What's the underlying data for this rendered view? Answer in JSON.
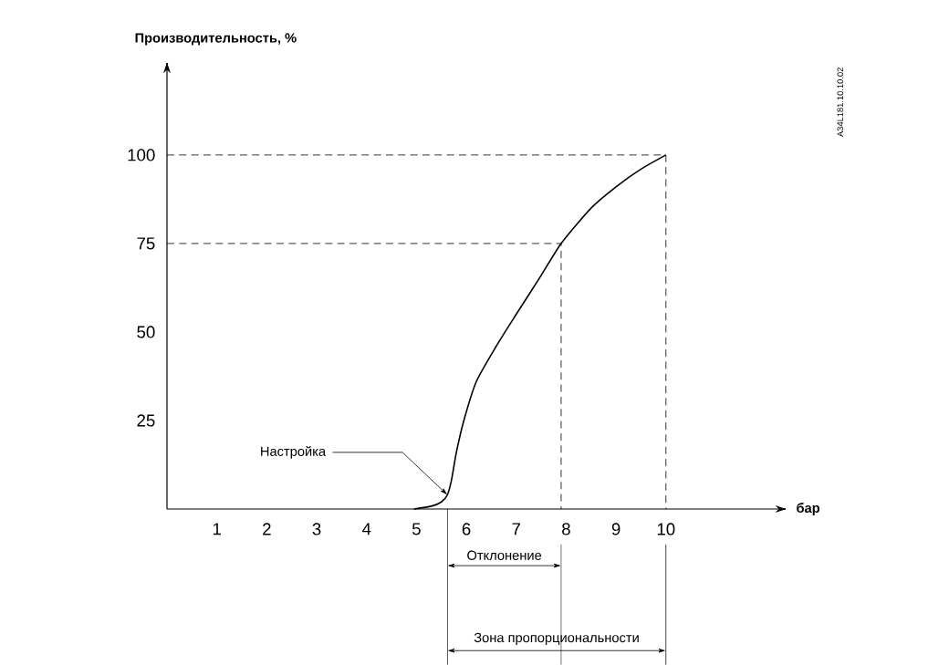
{
  "chart_data": {
    "type": "line",
    "xlabel": "бар",
    "ylabel": "Производительность, %",
    "xlim": [
      0,
      12.4
    ],
    "ylim": [
      0,
      126
    ],
    "xticks": [
      1,
      2,
      3,
      4,
      5,
      6,
      7,
      8,
      9,
      10
    ],
    "yticks": [
      25,
      50,
      75,
      100
    ],
    "series": [
      {
        "color": "#000000",
        "line_style": "solid",
        "x": [
          4.95,
          5.3,
          5.5,
          5.62,
          5.7,
          5.8,
          5.95,
          6.2,
          6.6,
          7.0,
          7.5,
          7.9,
          8.5,
          9.0,
          9.5,
          10
        ],
        "values": [
          0,
          0.8,
          2,
          4,
          8,
          16,
          25,
          36,
          46,
          55,
          66,
          75,
          85,
          91,
          96,
          100
        ]
      },
      {
        "color": "#000000",
        "line_style": "dashed",
        "x": [
          0,
          7.9,
          7.9
        ],
        "values": [
          75,
          75,
          0
        ]
      },
      {
        "color": "#000000",
        "line_style": "dashed",
        "x": [
          0,
          10,
          10
        ],
        "values": [
          100,
          100,
          0
        ]
      }
    ],
    "annotations": [
      {
        "text": "Настройка",
        "x": 5.62,
        "y": 4
      },
      "A34L181.10.10.02",
      "Отклонение",
      "Зона пропорциональности"
    ]
  }
}
